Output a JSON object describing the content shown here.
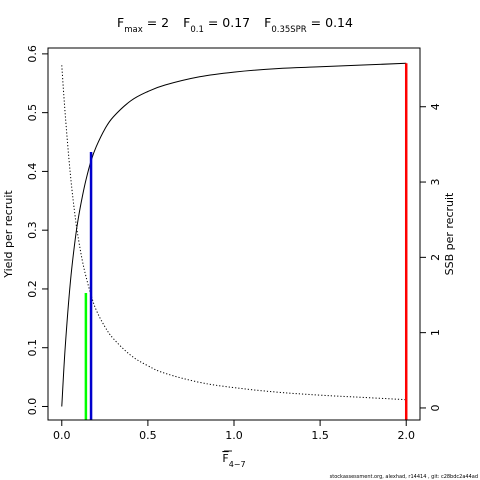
{
  "chart_data": {
    "type": "line",
    "title": {
      "parts": [
        {
          "base": "F",
          "sub": "max",
          "value": " = 2"
        },
        {
          "base": "F",
          "sub": "0.1",
          "value": " = 0.17"
        },
        {
          "base": "F",
          "sub": "0.35SPR",
          "value": " = 0.14"
        }
      ]
    },
    "xlabel": {
      "base": "F",
      "sub": "4−7"
    },
    "ylabel_left": "Yield per recruit",
    "ylabel_right": "SSB per recruit",
    "xlim": [
      -0.08,
      2.08
    ],
    "ylim_left": [
      -0.023,
      0.61
    ],
    "ylim_right": [
      -0.16,
      4.78
    ],
    "x_ticks": [
      {
        "v": 0,
        "label": "0.0"
      },
      {
        "v": 0.5,
        "label": "0.5"
      },
      {
        "v": 1,
        "label": "1.0"
      },
      {
        "v": 1.5,
        "label": "1.5"
      },
      {
        "v": 2,
        "label": "2.0"
      }
    ],
    "y_ticks_left": [
      {
        "v": 0,
        "label": "0.0"
      },
      {
        "v": 0.1,
        "label": "0.1"
      },
      {
        "v": 0.2,
        "label": "0.2"
      },
      {
        "v": 0.3,
        "label": "0.3"
      },
      {
        "v": 0.4,
        "label": "0.4"
      },
      {
        "v": 0.5,
        "label": "0.5"
      },
      {
        "v": 0.6,
        "label": "0.6"
      }
    ],
    "y_ticks_right": [
      {
        "v": 0,
        "label": "0"
      },
      {
        "v": 1,
        "label": "1"
      },
      {
        "v": 2,
        "label": "2"
      },
      {
        "v": 3,
        "label": "3"
      },
      {
        "v": 4,
        "label": "4"
      }
    ],
    "series": [
      {
        "axis": "left",
        "style": "solid",
        "color": "#000000",
        "x": [
          0,
          0.02,
          0.05,
          0.08,
          0.1,
          0.12,
          0.14,
          0.17,
          0.2,
          0.25,
          0.3,
          0.4,
          0.5,
          0.6,
          0.8,
          1.0,
          1.25,
          1.5,
          1.75,
          2.0
        ],
        "y": [
          0,
          0.101,
          0.212,
          0.289,
          0.327,
          0.358,
          0.385,
          0.418,
          0.442,
          0.472,
          0.493,
          0.52,
          0.536,
          0.547,
          0.561,
          0.569,
          0.575,
          0.578,
          0.581,
          0.584
        ]
      },
      {
        "axis": "right",
        "style": "dotted",
        "color": "#000000",
        "x": [
          0,
          0.02,
          0.05,
          0.08,
          0.1,
          0.12,
          0.14,
          0.17,
          0.2,
          0.25,
          0.3,
          0.4,
          0.5,
          0.6,
          0.8,
          1.0,
          1.25,
          1.5,
          1.75,
          2.0
        ],
        "y": [
          4.55,
          3.9,
          3.1,
          2.5,
          2.2,
          1.95,
          1.75,
          1.5,
          1.3,
          1.08,
          0.92,
          0.7,
          0.56,
          0.46,
          0.34,
          0.27,
          0.21,
          0.17,
          0.14,
          0.11
        ]
      }
    ],
    "reference_lines": [
      {
        "label": "F0.35SPR",
        "x": 0.14,
        "y": 0.193,
        "color": "#00ff00"
      },
      {
        "label": "F0.1",
        "x": 0.17,
        "y": 0.433,
        "color": "#0000cc"
      },
      {
        "label": "Fmax",
        "x": 2.0,
        "y": 0.584,
        "color": "#ff0000"
      }
    ],
    "footer": "stockassessment.org,  alexhad,  r14414 ,  git:  c28bdc2a44ad"
  }
}
